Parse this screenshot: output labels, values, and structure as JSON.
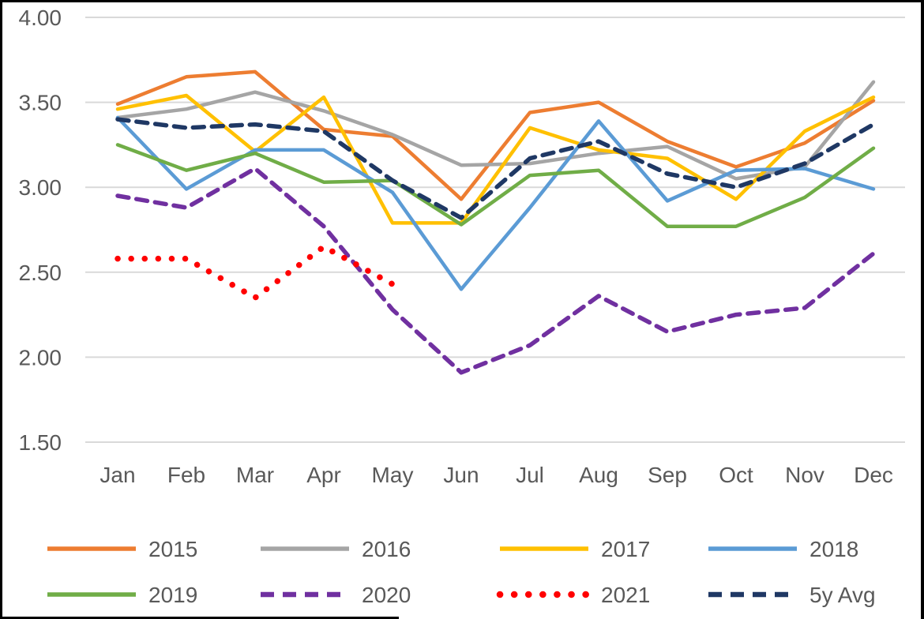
{
  "chart_data": {
    "type": "line",
    "title": "",
    "xlabel": "",
    "ylabel": "",
    "categories": [
      "Jan",
      "Feb",
      "Mar",
      "Apr",
      "May",
      "Jun",
      "Jul",
      "Aug",
      "Sep",
      "Oct",
      "Nov",
      "Dec"
    ],
    "y_ticks": [
      "4.00",
      "3.50",
      "3.00",
      "2.50",
      "2.00",
      "1.50"
    ],
    "ylim": [
      1.5,
      4.0
    ],
    "grid": true,
    "legend_position": "bottom",
    "axis_text_color": "#595959",
    "grid_color": "#D9D9D9",
    "series": [
      {
        "name": "2015",
        "color": "#ED7D31",
        "style": "solid",
        "values": [
          3.49,
          3.65,
          3.68,
          3.34,
          3.3,
          2.93,
          3.44,
          3.5,
          3.27,
          3.12,
          3.26,
          3.51
        ]
      },
      {
        "name": "2016",
        "color": "#A5A5A5",
        "style": "solid",
        "values": [
          3.41,
          3.46,
          3.56,
          3.45,
          3.31,
          3.13,
          3.14,
          3.2,
          3.24,
          3.05,
          3.12,
          3.62
        ]
      },
      {
        "name": "2017",
        "color": "#FFC000",
        "style": "solid",
        "values": [
          3.46,
          3.54,
          3.21,
          3.53,
          2.79,
          2.79,
          3.35,
          3.22,
          3.17,
          2.93,
          3.33,
          3.53
        ]
      },
      {
        "name": "2018",
        "color": "#5B9BD5",
        "style": "solid",
        "values": [
          3.41,
          2.99,
          3.22,
          3.22,
          2.97,
          2.4,
          2.88,
          3.39,
          2.92,
          3.1,
          3.11,
          2.99
        ]
      },
      {
        "name": "2019",
        "color": "#70AD47",
        "style": "solid",
        "values": [
          3.25,
          3.1,
          3.2,
          3.03,
          3.04,
          2.78,
          3.07,
          3.1,
          2.77,
          2.77,
          2.94,
          3.23
        ]
      },
      {
        "name": "2020",
        "color": "#7030A0",
        "style": "dashed",
        "values": [
          2.95,
          2.88,
          3.11,
          2.77,
          2.28,
          1.91,
          2.07,
          2.36,
          2.15,
          2.25,
          2.29,
          2.61
        ]
      },
      {
        "name": "2021",
        "color": "#FF0000",
        "style": "dotted",
        "values": [
          2.58,
          2.58,
          2.35,
          2.65,
          2.43,
          null,
          null,
          null,
          null,
          null,
          null,
          null
        ]
      },
      {
        "name": "5y Avg",
        "color": "#1F3864",
        "style": "dashed",
        "values": [
          3.4,
          3.35,
          3.37,
          3.33,
          3.04,
          2.82,
          3.17,
          3.27,
          3.08,
          3.0,
          3.14,
          3.37
        ]
      }
    ]
  }
}
